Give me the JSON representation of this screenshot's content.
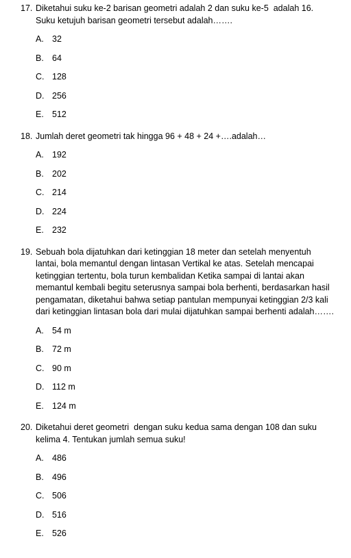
{
  "questions": [
    {
      "number": "17.",
      "text": "Diketahui suku ke-2 barisan geometri adalah 2 dan suku ke-5  adalah 16. Suku ketujuh barisan geometri tersebut adalah…….",
      "options": [
        {
          "letter": "A.",
          "text": "32"
        },
        {
          "letter": "B.",
          "text": "64"
        },
        {
          "letter": "C.",
          "text": "128"
        },
        {
          "letter": "D.",
          "text": "256"
        },
        {
          "letter": "E.",
          "text": "512"
        }
      ]
    },
    {
      "number": "18.",
      "text": "Jumlah deret geometri tak hingga 96 + 48 + 24 +….adalah…",
      "options": [
        {
          "letter": "A.",
          "text": "192"
        },
        {
          "letter": "B.",
          "text": "202"
        },
        {
          "letter": "C.",
          "text": "214"
        },
        {
          "letter": "D.",
          "text": "224"
        },
        {
          "letter": "E.",
          "text": "232"
        }
      ]
    },
    {
      "number": "19.",
      "text": "Sebuah bola dijatuhkan dari ketinggian 18 meter dan setelah menyentuh lantai, bola memantul dengan lintasan Vertikal ke atas. Setelah mencapai ketinggian tertentu, bola turun kembalidan Ketika sampai di lantai akan memantul kembali begitu seterusnya sampai bola berhenti, berdasarkan hasil pengamatan, diketahui bahwa setiap pantulan mempunyai ketinggian 2/3 kali dari ketinggian lintasan bola dari mulai dijatuhkan sampai berhenti adalah…….",
      "options": [
        {
          "letter": "A.",
          "text": "54 m"
        },
        {
          "letter": "B.",
          "text": "72 m"
        },
        {
          "letter": "C.",
          "text": "90 m"
        },
        {
          "letter": "D.",
          "text": "112 m"
        },
        {
          "letter": "E.",
          "text": "124 m"
        }
      ]
    },
    {
      "number": "20.",
      "text": "Diketahui deret geometri  dengan suku kedua sama dengan 108 dan suku kelima 4. Tentukan jumlah semua suku!",
      "options": [
        {
          "letter": "A.",
          "text": "486"
        },
        {
          "letter": "B.",
          "text": "496"
        },
        {
          "letter": "C.",
          "text": "506"
        },
        {
          "letter": "D.",
          "text": "516"
        },
        {
          "letter": "E.",
          "text": "526"
        }
      ]
    }
  ]
}
